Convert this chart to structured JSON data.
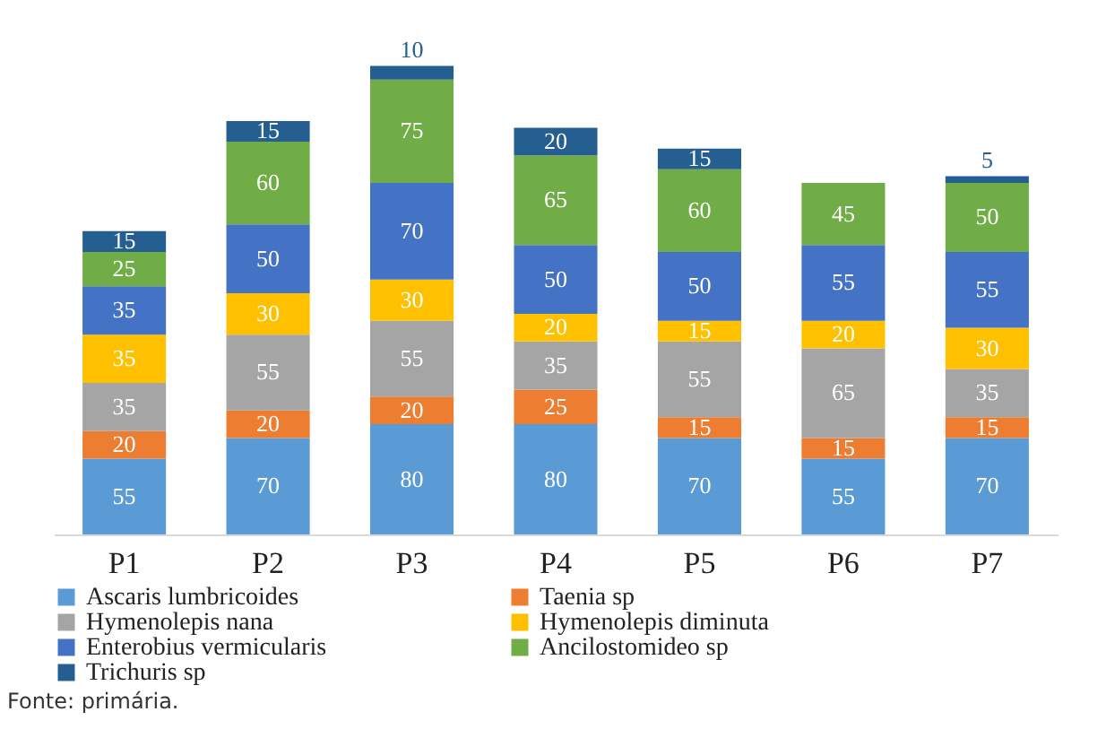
{
  "chart_data": {
    "type": "bar",
    "stacked": true,
    "data_labels": true,
    "legend": "bottom",
    "categories": [
      "P1",
      "P2",
      "P3",
      "P4",
      "P5",
      "P6",
      "P7"
    ],
    "series": [
      {
        "name": "Ascaris lumbricoides",
        "color": "#5b9bd5",
        "values": [
          55,
          70,
          80,
          80,
          70,
          55,
          70
        ]
      },
      {
        "name": "Taenia sp",
        "color": "#ed7d31",
        "values": [
          20,
          20,
          20,
          25,
          15,
          15,
          15
        ]
      },
      {
        "name": "Hymenolepis nana",
        "color": "#a5a5a5",
        "values": [
          35,
          55,
          55,
          35,
          55,
          65,
          35
        ]
      },
      {
        "name": "Hymenolepis diminuta",
        "color": "#ffc000",
        "values": [
          35,
          30,
          30,
          20,
          15,
          20,
          30
        ]
      },
      {
        "name": "Enterobius vermicularis",
        "color": "#4472c4",
        "values": [
          35,
          50,
          70,
          50,
          50,
          55,
          55
        ]
      },
      {
        "name": "Ancilostomideo sp",
        "color": "#70ad47",
        "values": [
          25,
          60,
          75,
          65,
          60,
          45,
          50
        ]
      },
      {
        "name": "Trichuris sp",
        "color": "#255e91",
        "values": [
          15,
          15,
          10,
          20,
          15,
          null,
          5
        ]
      }
    ],
    "annotations": [
      "Fonte: primária."
    ]
  }
}
